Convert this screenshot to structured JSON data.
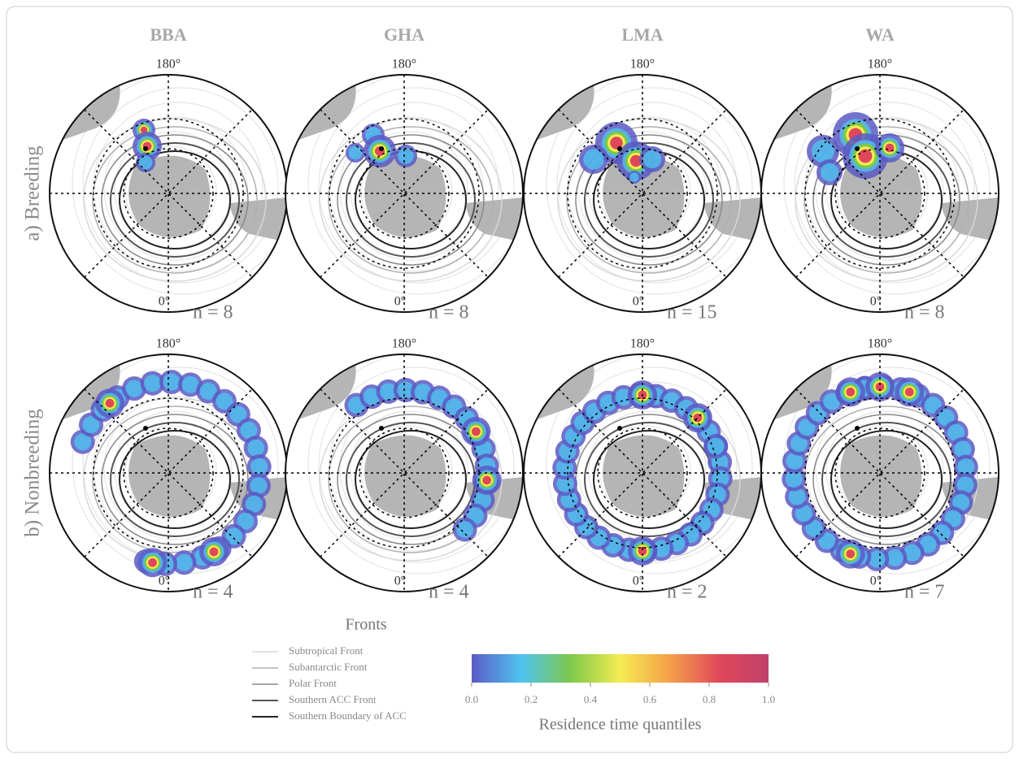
{
  "columns": [
    {
      "species": "BBA"
    },
    {
      "species": "GHA"
    },
    {
      "species": "LMA"
    },
    {
      "species": "WA"
    }
  ],
  "rows": [
    {
      "label": "a) Breeding",
      "panels": [
        {
          "top": "180°",
          "bottom": "0°",
          "n": "n = 8"
        },
        {
          "top": "180°",
          "bottom": "0°",
          "n": "n = 8"
        },
        {
          "top": "180°",
          "bottom": "0°",
          "n": "n = 15"
        },
        {
          "top": "180°",
          "bottom": "0°",
          "n": "n = 8"
        }
      ]
    },
    {
      "label": "b) Nonbreeding",
      "panels": [
        {
          "top": "180°",
          "bottom": "0°",
          "n": "n = 4"
        },
        {
          "top": "180°",
          "bottom": "0°",
          "n": "n = 4"
        },
        {
          "top": "180°",
          "bottom": "0°",
          "n": "n = 2"
        },
        {
          "top": "180°",
          "bottom": "0°",
          "n": "n = 7"
        }
      ]
    }
  ],
  "legend": {
    "title": "Fronts",
    "items": [
      {
        "name": "Subtropical Front",
        "color": "#d8d8d8"
      },
      {
        "name": "Subantarctic Front",
        "color": "#b0b0b0"
      },
      {
        "name": "Polar Front",
        "color": "#888888"
      },
      {
        "name": "Southern ACC Front",
        "color": "#555555"
      },
      {
        "name": "Southern Boundary of ACC",
        "color": "#222222"
      }
    ]
  },
  "colorbar": {
    "title": "Residence time quantiles",
    "lim": [
      0,
      1
    ],
    "ticks": [
      {
        "value": 0,
        "label": "0.0"
      },
      {
        "value": 0.2,
        "label": "0.2"
      },
      {
        "value": 0.4,
        "label": "0.4"
      },
      {
        "value": 0.6,
        "label": "0.6"
      },
      {
        "value": 0.8,
        "label": "0.8"
      },
      {
        "value": 1,
        "label": "1.0"
      }
    ],
    "colors": [
      "#5b5bc4",
      "#4fc3f0",
      "#7cc94a",
      "#f5ec52",
      "#f4a04a",
      "#e0485a",
      "#c0406a"
    ]
  }
}
